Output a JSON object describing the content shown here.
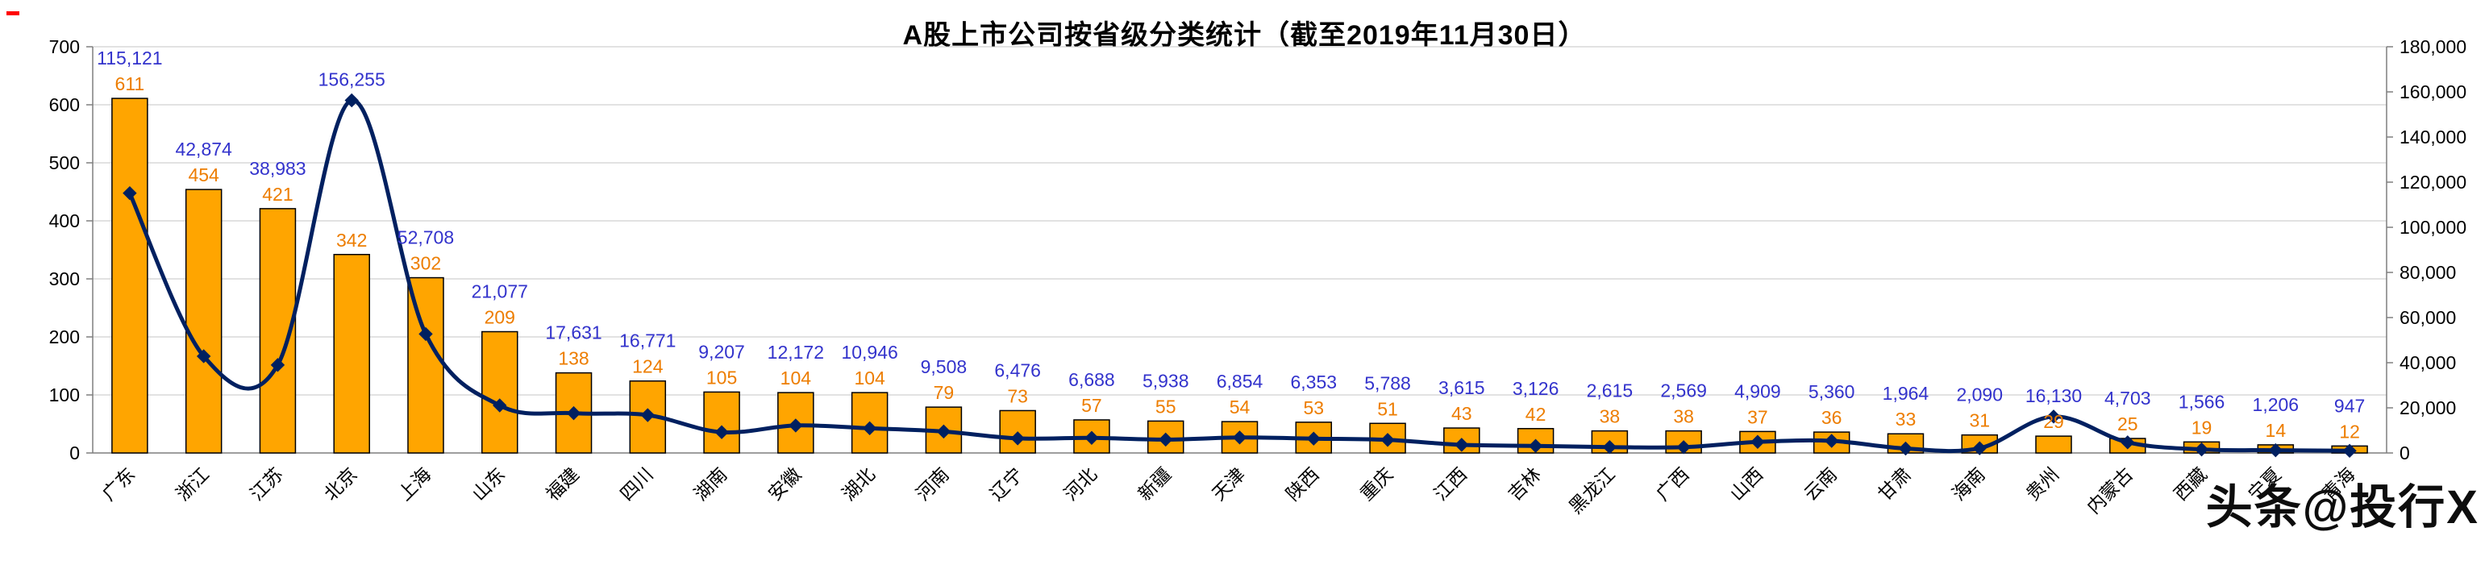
{
  "title": "A股上市公司按省级分类统计（截至2019年11月30日）",
  "watermark": "头条@投行X",
  "chart_data": {
    "type": "combo-bar-line",
    "title": "A股上市公司按省级分类统计（截至2019年11月30日）",
    "categories": [
      "广东",
      "浙江",
      "江苏",
      "北京",
      "上海",
      "山东",
      "福建",
      "四川",
      "湖南",
      "安徽",
      "湖北",
      "河南",
      "辽宁",
      "河北",
      "新疆",
      "天津",
      "陕西",
      "重庆",
      "江西",
      "吉林",
      "黑龙江",
      "广西",
      "山西",
      "云南",
      "甘肃",
      "海南",
      "贵州",
      "内蒙古",
      "西藏",
      "宁夏",
      "青海"
    ],
    "series": [
      {
        "type": "bar",
        "axis": "left",
        "values": [
          611,
          454,
          421,
          342,
          302,
          209,
          138,
          124,
          105,
          104,
          104,
          79,
          73,
          57,
          55,
          54,
          53,
          51,
          43,
          42,
          38,
          38,
          37,
          36,
          33,
          31,
          29,
          25,
          19,
          14,
          12
        ]
      },
      {
        "type": "line",
        "axis": "right",
        "values": [
          115121,
          42874,
          38983,
          156255,
          52708,
          21077,
          17631,
          16771,
          9207,
          12172,
          10946,
          9508,
          6476,
          6688,
          5938,
          6854,
          6353,
          5788,
          3615,
          3126,
          2615,
          2569,
          4909,
          5360,
          1964,
          2090,
          16130,
          4703,
          1566,
          1206,
          947
        ]
      }
    ],
    "left_axis": {
      "min": 0,
      "max": 700,
      "step": 100,
      "ticks": [
        0,
        100,
        200,
        300,
        400,
        500,
        600,
        700
      ]
    },
    "right_axis": {
      "min": 0,
      "max": 180000,
      "step": 20000,
      "ticks": [
        0,
        20000,
        40000,
        60000,
        80000,
        100000,
        120000,
        140000,
        160000,
        180000
      ]
    },
    "grid": true,
    "legend": "none",
    "colors": {
      "bar": "#FFA500",
      "bar_border": "#000000",
      "bar_label": "#ED7D00",
      "line": "#002060",
      "line_label": "#3333CC",
      "grid": "#C6C6C6",
      "axis": "#7F7F7F",
      "text": "#000000"
    }
  }
}
